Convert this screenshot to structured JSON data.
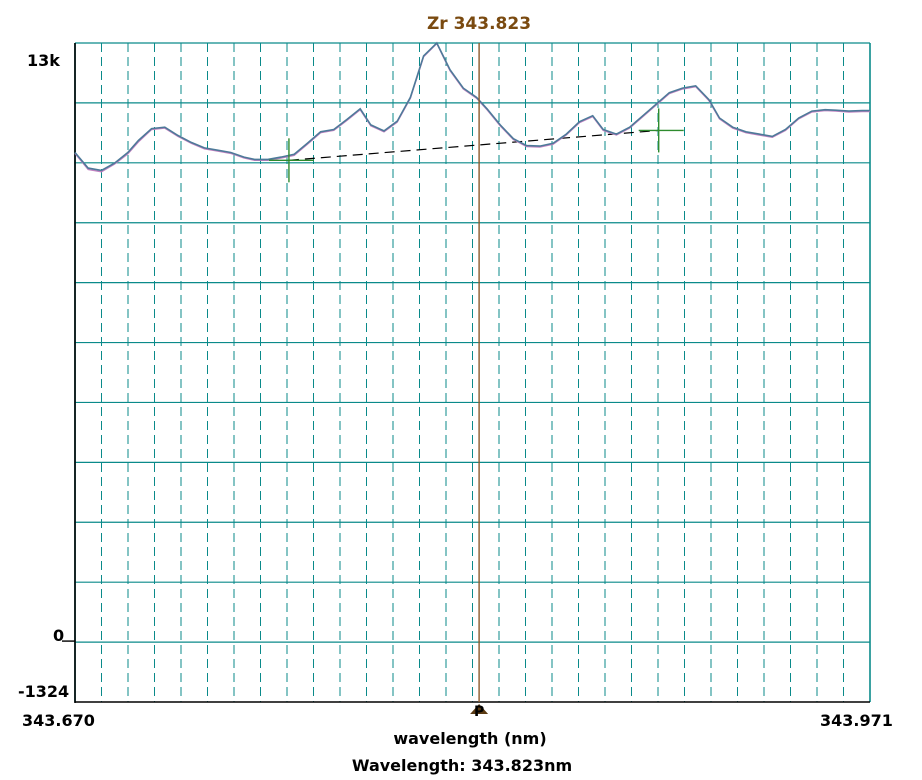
{
  "chart_data": {
    "type": "line",
    "title": "Zr 343.823",
    "xlabel": "wavelength (nm)",
    "readout": "Wavelength: 343.823nm",
    "marker_label": "P",
    "xlim": [
      343.67,
      343.971
    ],
    "ylim": [
      -1324,
      13000
    ],
    "x_tick_labels": [
      "343.670",
      "343.971"
    ],
    "y_tick_labels": [
      "13k",
      "0",
      "-1324"
    ],
    "grid": true,
    "peak_wavelength": 343.823,
    "colors": {
      "grid": "#0a8a8a",
      "series_a": "#c080c0",
      "series_b": "#4d7a99",
      "marker": "#8b5a2b",
      "cursor": "#2e8b2e",
      "baseline": "#000000"
    },
    "series": [
      {
        "x": [
          343.67,
          343.675,
          343.68,
          343.685,
          343.69,
          343.694,
          343.699,
          343.704,
          343.709,
          343.714,
          343.719,
          343.724,
          343.729,
          343.734,
          343.738,
          343.743,
          343.748,
          343.753,
          343.758,
          343.763,
          343.768,
          343.773,
          343.778,
          343.782,
          343.787,
          343.792,
          343.797,
          343.802,
          343.807,
          343.812,
          343.817,
          343.822,
          343.826,
          343.831,
          343.836,
          343.841,
          343.846,
          343.851,
          343.856,
          343.861,
          343.866,
          343.87,
          343.875,
          343.88,
          343.885,
          343.89,
          343.895,
          343.9,
          343.905,
          343.91,
          343.914,
          343.919,
          343.924,
          343.929,
          343.934,
          343.939,
          343.944,
          343.949,
          343.954,
          343.958,
          343.963,
          343.968,
          343.971
        ],
        "y": [
          10600,
          10250,
          10200,
          10370,
          10590,
          10850,
          11120,
          11150,
          10970,
          10820,
          10700,
          10650,
          10600,
          10500,
          10450,
          10450,
          10500,
          10560,
          10800,
          11050,
          11100,
          11320,
          11550,
          11200,
          11070,
          11280,
          11800,
          12700,
          12990,
          12400,
          12000,
          11800,
          11550,
          11200,
          10900,
          10750,
          10740,
          10800,
          11000,
          11270,
          11400,
          11100,
          11000,
          11150,
          11400,
          11650,
          11900,
          12000,
          12050,
          11750,
          11350,
          11150,
          11050,
          11000,
          10950,
          11100,
          11350,
          11500,
          11530,
          11520,
          11500,
          11510,
          11510
        ]
      },
      {
        "x": [
          343.67,
          343.675,
          343.68,
          343.685,
          343.69,
          343.694,
          343.699,
          343.704,
          343.709,
          343.714,
          343.719,
          343.724,
          343.729,
          343.734,
          343.738,
          343.743,
          343.748,
          343.753,
          343.758,
          343.763,
          343.768,
          343.773,
          343.778,
          343.782,
          343.787,
          343.792,
          343.797,
          343.802,
          343.807,
          343.812,
          343.817,
          343.822,
          343.826,
          343.831,
          343.836,
          343.841,
          343.846,
          343.851,
          343.856,
          343.861,
          343.866,
          343.87,
          343.875,
          343.88,
          343.885,
          343.89,
          343.895,
          343.9,
          343.905,
          343.91,
          343.914,
          343.919,
          343.924,
          343.929,
          343.934,
          343.939,
          343.944,
          343.949,
          343.954,
          343.958,
          343.963,
          343.968,
          343.971
        ],
        "y": [
          10620,
          10280,
          10230,
          10390,
          10620,
          10880,
          11140,
          11170,
          10990,
          10840,
          10720,
          10670,
          10620,
          10520,
          10470,
          10470,
          10520,
          10580,
          10820,
          11070,
          11120,
          11340,
          11570,
          11220,
          11090,
          11300,
          11820,
          12720,
          13000,
          12420,
          12020,
          11820,
          11570,
          11220,
          10920,
          10770,
          10760,
          10820,
          11020,
          11290,
          11420,
          11120,
          11020,
          11170,
          11420,
          11670,
          11920,
          12020,
          12070,
          11770,
          11370,
          11170,
          11070,
          11020,
          10970,
          11120,
          11370,
          11520,
          11550,
          11540,
          11520,
          11530,
          11530
        ]
      }
    ],
    "baseline": {
      "x": [
        343.751,
        343.891
      ],
      "y": [
        10450,
        11100
      ]
    }
  }
}
